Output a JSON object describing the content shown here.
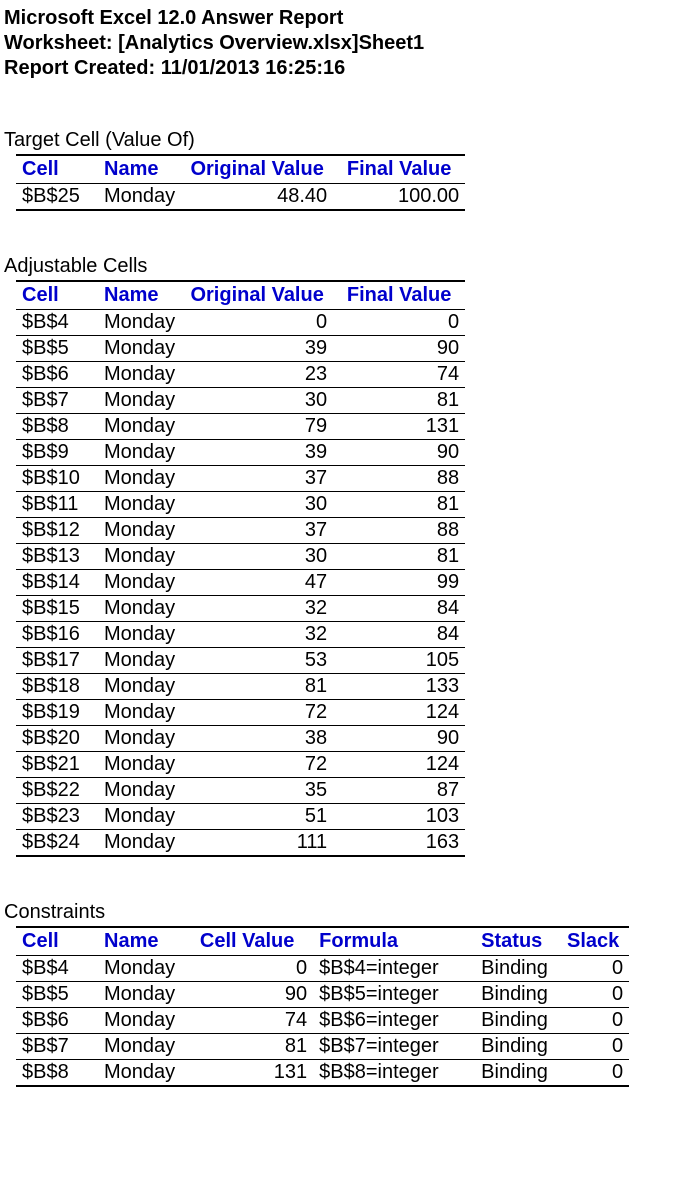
{
  "header": {
    "line1": "Microsoft Excel 12.0 Answer Report",
    "line2": "Worksheet: [Analytics Overview.xlsx]Sheet1",
    "line3": "Report Created: 11/01/2013 16:25:16"
  },
  "target": {
    "title": "Target Cell (Value Of)",
    "columns": [
      "Cell",
      "Name",
      "Original Value",
      "Final Value"
    ],
    "rows": [
      {
        "cell": "$B$25",
        "name": "Monday",
        "orig": "48.40",
        "final": "100.00"
      }
    ]
  },
  "adjustable": {
    "title": "Adjustable Cells",
    "columns": [
      "Cell",
      "Name",
      "Original Value",
      "Final Value"
    ],
    "rows": [
      {
        "cell": "$B$4",
        "name": "Monday",
        "orig": "0",
        "final": "0"
      },
      {
        "cell": "$B$5",
        "name": "Monday",
        "orig": "39",
        "final": "90"
      },
      {
        "cell": "$B$6",
        "name": "Monday",
        "orig": "23",
        "final": "74"
      },
      {
        "cell": "$B$7",
        "name": "Monday",
        "orig": "30",
        "final": "81"
      },
      {
        "cell": "$B$8",
        "name": "Monday",
        "orig": "79",
        "final": "131"
      },
      {
        "cell": "$B$9",
        "name": "Monday",
        "orig": "39",
        "final": "90"
      },
      {
        "cell": "$B$10",
        "name": "Monday",
        "orig": "37",
        "final": "88"
      },
      {
        "cell": "$B$11",
        "name": "Monday",
        "orig": "30",
        "final": "81"
      },
      {
        "cell": "$B$12",
        "name": "Monday",
        "orig": "37",
        "final": "88"
      },
      {
        "cell": "$B$13",
        "name": "Monday",
        "orig": "30",
        "final": "81"
      },
      {
        "cell": "$B$14",
        "name": "Monday",
        "orig": "47",
        "final": "99"
      },
      {
        "cell": "$B$15",
        "name": "Monday",
        "orig": "32",
        "final": "84"
      },
      {
        "cell": "$B$16",
        "name": "Monday",
        "orig": "32",
        "final": "84"
      },
      {
        "cell": "$B$17",
        "name": "Monday",
        "orig": "53",
        "final": "105"
      },
      {
        "cell": "$B$18",
        "name": "Monday",
        "orig": "81",
        "final": "133"
      },
      {
        "cell": "$B$19",
        "name": "Monday",
        "orig": "72",
        "final": "124"
      },
      {
        "cell": "$B$20",
        "name": "Monday",
        "orig": "38",
        "final": "90"
      },
      {
        "cell": "$B$21",
        "name": "Monday",
        "orig": "72",
        "final": "124"
      },
      {
        "cell": "$B$22",
        "name": "Monday",
        "orig": "35",
        "final": "87"
      },
      {
        "cell": "$B$23",
        "name": "Monday",
        "orig": "51",
        "final": "103"
      },
      {
        "cell": "$B$24",
        "name": "Monday",
        "orig": "111",
        "final": "163"
      }
    ]
  },
  "constraints": {
    "title": "Constraints",
    "columns": [
      "Cell",
      "Name",
      "Cell Value",
      "Formula",
      "Status",
      "Slack"
    ],
    "rows": [
      {
        "cell": "$B$4",
        "name": "Monday",
        "cv": "0",
        "formula": "$B$4=integer",
        "status": "Binding",
        "slack": "0"
      },
      {
        "cell": "$B$5",
        "name": "Monday",
        "cv": "90",
        "formula": "$B$5=integer",
        "status": "Binding",
        "slack": "0"
      },
      {
        "cell": "$B$6",
        "name": "Monday",
        "cv": "74",
        "formula": "$B$6=integer",
        "status": "Binding",
        "slack": "0"
      },
      {
        "cell": "$B$7",
        "name": "Monday",
        "cv": "81",
        "formula": "$B$7=integer",
        "status": "Binding",
        "slack": "0"
      },
      {
        "cell": "$B$8",
        "name": "Monday",
        "cv": "131",
        "formula": "$B$8=integer",
        "status": "Binding",
        "slack": "0"
      }
    ]
  },
  "style": {
    "header_color": "#0000cc",
    "border_color": "#000000",
    "font_family": "Arial",
    "font_size_pt": 15,
    "col_align": {
      "cell": "left",
      "name": "left",
      "orig": "right",
      "final": "right",
      "cv": "right",
      "formula": "left",
      "status": "left",
      "slack": "right"
    }
  }
}
